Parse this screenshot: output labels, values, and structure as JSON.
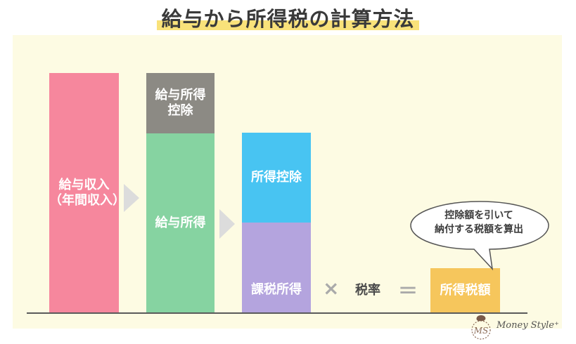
{
  "title": "給与から所得税の計算方法",
  "blocks": {
    "salary_income": "給与収入\n（年間収入）",
    "salary_deduction": "給与所得\n控除",
    "salary_earnings": "給与所得",
    "income_deduction": "所得控除",
    "taxable_income": "課税所得",
    "income_tax_amount": "所得税額"
  },
  "operators": {
    "multiply": "×",
    "equals": "＝"
  },
  "tax_rate": "税率",
  "speech_bubble": "控除額を引いて\n納付する税額を算出",
  "logo": {
    "mark": "MS",
    "text": "Money Style⁺"
  },
  "colors": {
    "salary_income": "#f6879d",
    "salary_deduction": "#8c8a84",
    "salary_earnings": "#86d3a1",
    "income_deduction": "#48c4f2",
    "taxable_income": "#b4a4de",
    "income_tax_amount": "#f6c65c",
    "title_highlight": "#f9e27a",
    "background_panel": "#fdfbe3"
  },
  "icons": [
    "right-arrow-icon",
    "multiply-icon",
    "equals-icon",
    "speech-bubble-icon",
    "money-style-logo-icon"
  ]
}
